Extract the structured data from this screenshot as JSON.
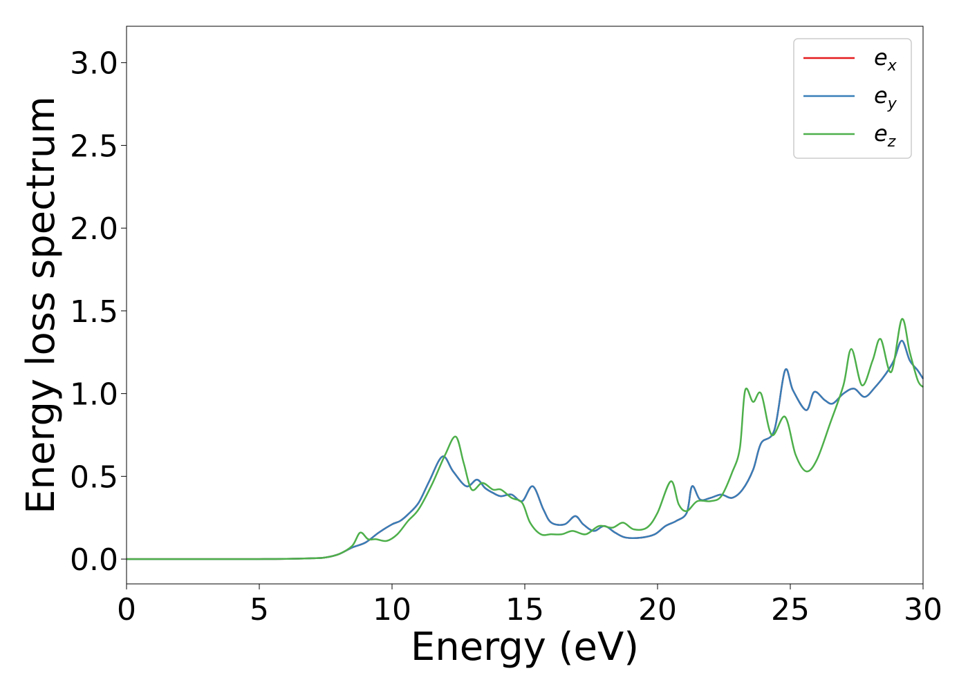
{
  "chart_data": {
    "type": "line",
    "title": "",
    "xlabel": "Energy (eV)",
    "ylabel": "Energy loss spectrum",
    "xlim": [
      0,
      30
    ],
    "ylim": [
      -0.15,
      3.22
    ],
    "xticks": [
      0,
      5,
      10,
      15,
      20,
      25,
      30
    ],
    "yticks": [
      0.0,
      0.5,
      1.0,
      1.5,
      2.0,
      2.5,
      3.0
    ],
    "xtick_labels": [
      "0",
      "5",
      "10",
      "15",
      "20",
      "25",
      "30"
    ],
    "ytick_labels": [
      "0.0",
      "0.5",
      "1.0",
      "1.5",
      "2.0",
      "2.5",
      "3.0"
    ],
    "grid": false,
    "legend_position": "top-right",
    "series": [
      {
        "name": "e_x",
        "base": "e",
        "sub": "x",
        "color": "#e41a1c",
        "x": [
          0,
          5,
          7,
          7.5,
          8,
          8.5,
          9,
          9.5,
          10,
          10.3,
          10.6,
          11,
          11.4,
          11.9,
          12.3,
          12.8,
          13.2,
          13.5,
          13.8,
          14.1,
          14.5,
          14.9,
          15.3,
          15.7,
          16.0,
          16.5,
          16.9,
          17.2,
          17.6,
          18.0,
          18.4,
          18.8,
          19.4,
          19.9,
          20.3,
          20.7,
          21.1,
          21.3,
          21.6,
          22.0,
          22.4,
          22.8,
          23.2,
          23.6,
          23.9,
          24.4,
          24.8,
          25.1,
          25.6,
          25.9,
          26.3,
          26.6,
          27.0,
          27.4,
          27.8,
          28.2,
          28.6,
          28.9,
          29.2,
          29.5,
          29.8,
          30
        ],
        "y": [
          0,
          0,
          0.005,
          0.01,
          0.03,
          0.07,
          0.1,
          0.16,
          0.21,
          0.23,
          0.27,
          0.34,
          0.47,
          0.62,
          0.53,
          0.44,
          0.48,
          0.43,
          0.4,
          0.38,
          0.39,
          0.35,
          0.44,
          0.3,
          0.22,
          0.21,
          0.26,
          0.21,
          0.17,
          0.2,
          0.16,
          0.13,
          0.13,
          0.15,
          0.2,
          0.23,
          0.28,
          0.44,
          0.36,
          0.37,
          0.39,
          0.37,
          0.42,
          0.54,
          0.7,
          0.78,
          1.14,
          1.02,
          0.9,
          1.01,
          0.96,
          0.94,
          1.0,
          1.03,
          0.98,
          1.04,
          1.12,
          1.2,
          1.32,
          1.2,
          1.14,
          1.09
        ]
      },
      {
        "name": "e_y",
        "base": "e",
        "sub": "y",
        "color": "#377eb8",
        "x": [
          0,
          5,
          7,
          7.5,
          8,
          8.5,
          9,
          9.5,
          10,
          10.3,
          10.6,
          11,
          11.4,
          11.9,
          12.3,
          12.8,
          13.2,
          13.5,
          13.8,
          14.1,
          14.5,
          14.9,
          15.3,
          15.7,
          16.0,
          16.5,
          16.9,
          17.2,
          17.6,
          18.0,
          18.4,
          18.8,
          19.4,
          19.9,
          20.3,
          20.7,
          21.1,
          21.3,
          21.6,
          22.0,
          22.4,
          22.8,
          23.2,
          23.6,
          23.9,
          24.4,
          24.8,
          25.1,
          25.6,
          25.9,
          26.3,
          26.6,
          27.0,
          27.4,
          27.8,
          28.2,
          28.6,
          28.9,
          29.2,
          29.5,
          29.8,
          30
        ],
        "y": [
          0,
          0,
          0.005,
          0.01,
          0.03,
          0.07,
          0.1,
          0.16,
          0.21,
          0.23,
          0.27,
          0.34,
          0.47,
          0.62,
          0.53,
          0.44,
          0.48,
          0.43,
          0.4,
          0.38,
          0.39,
          0.35,
          0.44,
          0.3,
          0.22,
          0.21,
          0.26,
          0.21,
          0.17,
          0.2,
          0.16,
          0.13,
          0.13,
          0.15,
          0.2,
          0.23,
          0.28,
          0.44,
          0.36,
          0.37,
          0.39,
          0.37,
          0.42,
          0.54,
          0.7,
          0.78,
          1.14,
          1.02,
          0.9,
          1.01,
          0.96,
          0.94,
          1.0,
          1.03,
          0.98,
          1.04,
          1.12,
          1.2,
          1.32,
          1.2,
          1.14,
          1.09
        ]
      },
      {
        "name": "e_z",
        "base": "e",
        "sub": "z",
        "color": "#4daf4a",
        "x": [
          0,
          5,
          7,
          7.5,
          8,
          8.5,
          8.8,
          9.1,
          9.4,
          9.8,
          10.2,
          10.6,
          11.0,
          11.5,
          12.0,
          12.4,
          12.7,
          13.0,
          13.4,
          13.8,
          14.1,
          14.5,
          14.9,
          15.2,
          15.6,
          16.0,
          16.4,
          16.8,
          17.3,
          17.8,
          18.3,
          18.7,
          19.1,
          19.6,
          20.0,
          20.5,
          20.8,
          21.1,
          21.5,
          22.0,
          22.4,
          22.8,
          23.1,
          23.3,
          23.6,
          23.9,
          24.3,
          24.8,
          25.2,
          25.6,
          26.0,
          26.5,
          27.0,
          27.3,
          27.7,
          28.1,
          28.4,
          28.8,
          29.2,
          29.5,
          29.8,
          30
        ],
        "y": [
          0,
          0,
          0.005,
          0.01,
          0.03,
          0.08,
          0.16,
          0.12,
          0.12,
          0.11,
          0.15,
          0.23,
          0.3,
          0.45,
          0.63,
          0.74,
          0.58,
          0.42,
          0.46,
          0.42,
          0.42,
          0.37,
          0.34,
          0.22,
          0.15,
          0.15,
          0.15,
          0.17,
          0.15,
          0.2,
          0.19,
          0.22,
          0.18,
          0.19,
          0.28,
          0.47,
          0.33,
          0.29,
          0.35,
          0.35,
          0.38,
          0.52,
          0.67,
          1.02,
          0.95,
          1.0,
          0.75,
          0.86,
          0.63,
          0.53,
          0.6,
          0.82,
          1.05,
          1.27,
          1.05,
          1.2,
          1.33,
          1.13,
          1.45,
          1.25,
          1.08,
          1.04
        ]
      }
    ]
  }
}
